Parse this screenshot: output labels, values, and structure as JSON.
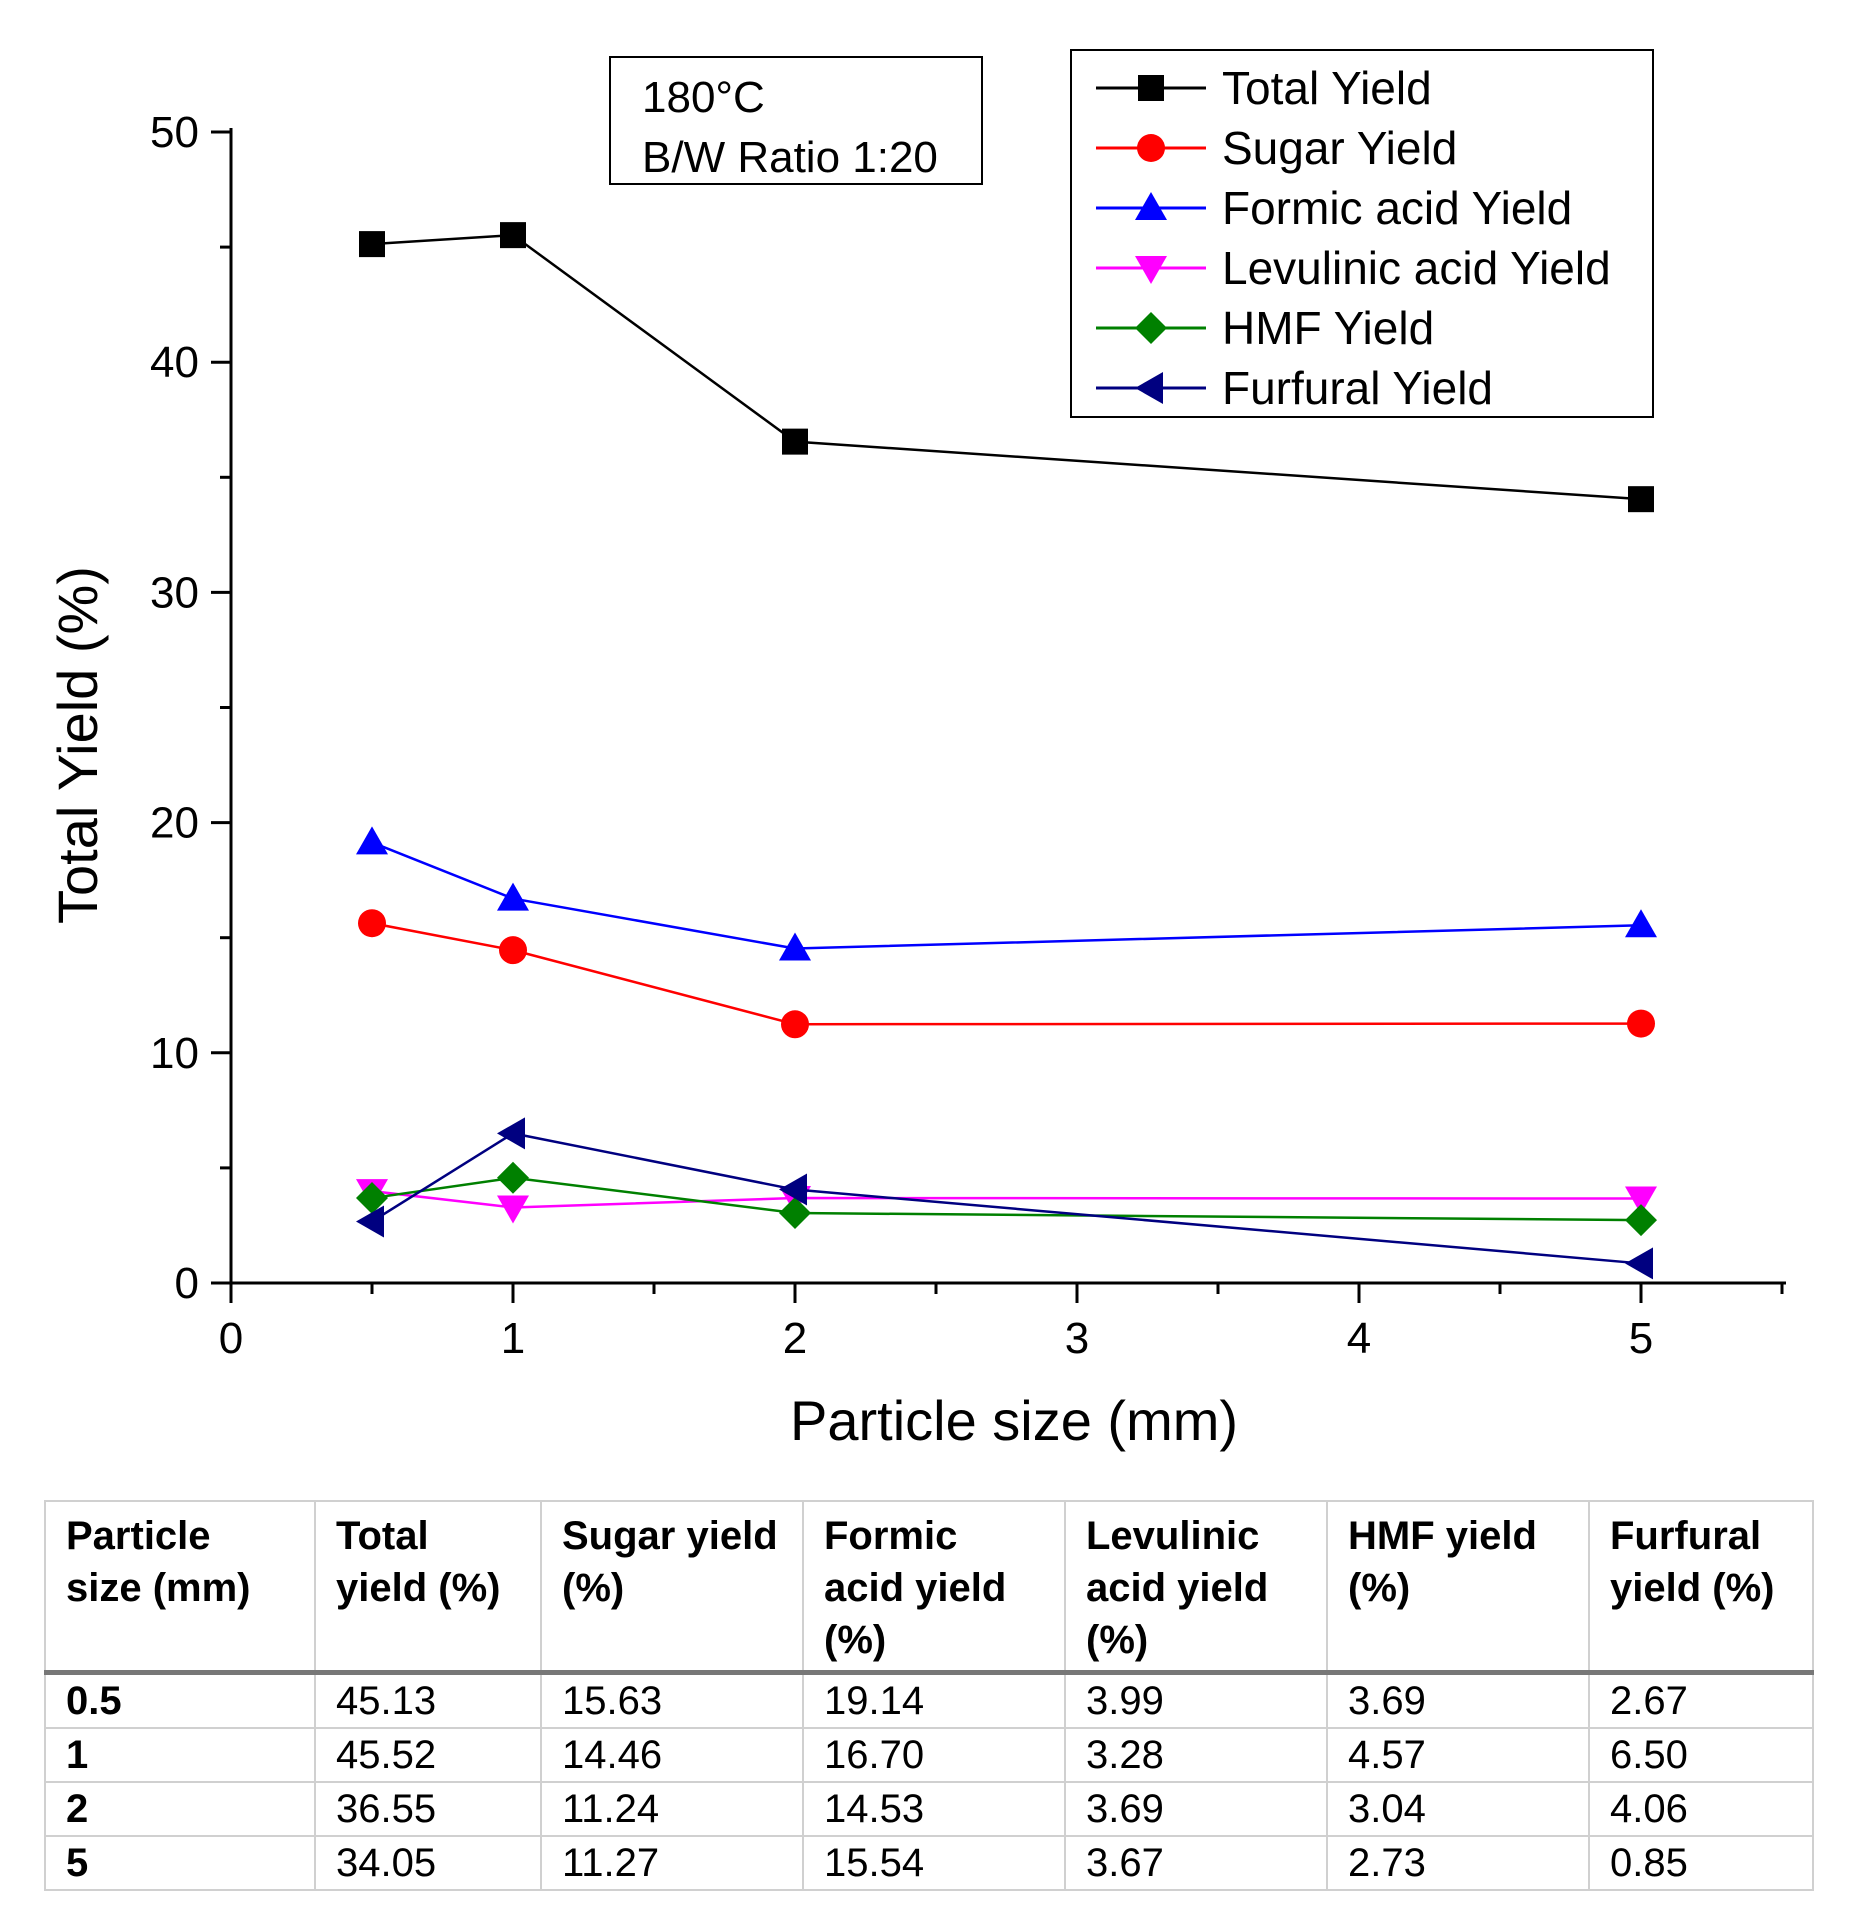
{
  "chart_data": {
    "type": "line",
    "xlabel": "Particle size (mm)",
    "ylabel": "Total Yield (%)",
    "xlim": [
      0,
      5.5
    ],
    "ylim": [
      0,
      50
    ],
    "xticks": [
      0,
      1,
      2,
      3,
      4,
      5
    ],
    "yticks": [
      0,
      10,
      20,
      30,
      40,
      50
    ],
    "grid": false,
    "legend_position": "top-right",
    "annotation": [
      "180°C",
      "B/W Ratio 1:20"
    ],
    "x": [
      0.5,
      1,
      2,
      5
    ],
    "series": [
      {
        "name": "Total Yield",
        "values": [
          45.13,
          45.52,
          36.55,
          34.05
        ],
        "color": "#000000",
        "marker": "square"
      },
      {
        "name": "Sugar Yield",
        "values": [
          15.63,
          14.46,
          11.24,
          11.27
        ],
        "color": "#ff0000",
        "marker": "circle"
      },
      {
        "name": "Formic acid Yield",
        "values": [
          19.14,
          16.7,
          14.53,
          15.54
        ],
        "color": "#0000ff",
        "marker": "triangle-up"
      },
      {
        "name": "Levulinic acid Yield",
        "values": [
          3.99,
          3.28,
          3.69,
          3.67
        ],
        "color": "#ff00ff",
        "marker": "triangle-down"
      },
      {
        "name": "HMF Yield",
        "values": [
          3.69,
          4.57,
          3.04,
          2.73
        ],
        "color": "#008000",
        "marker": "diamond"
      },
      {
        "name": "Furfural Yield",
        "values": [
          2.67,
          6.5,
          4.06,
          0.85
        ],
        "color": "#000080",
        "marker": "triangle-left"
      }
    ]
  },
  "table": {
    "headers": [
      "Particle size (mm)",
      "Total yield (%)",
      "Sugar yield (%)",
      "Formic acid yield (%)",
      "Levulinic acid yield (%)",
      "HMF yield (%)",
      "Furfural yield (%)"
    ],
    "rows": [
      [
        "0.5",
        "45.13",
        "15.63",
        "19.14",
        "3.99",
        "3.69",
        "2.67"
      ],
      [
        "1",
        "45.52",
        "14.46",
        "16.70",
        "3.28",
        "4.57",
        "6.50"
      ],
      [
        "2",
        "36.55",
        "11.24",
        "14.53",
        "3.69",
        "3.04",
        "4.06"
      ],
      [
        "5",
        "34.05",
        "11.27",
        "15.54",
        "3.67",
        "2.73",
        "0.85"
      ]
    ]
  }
}
